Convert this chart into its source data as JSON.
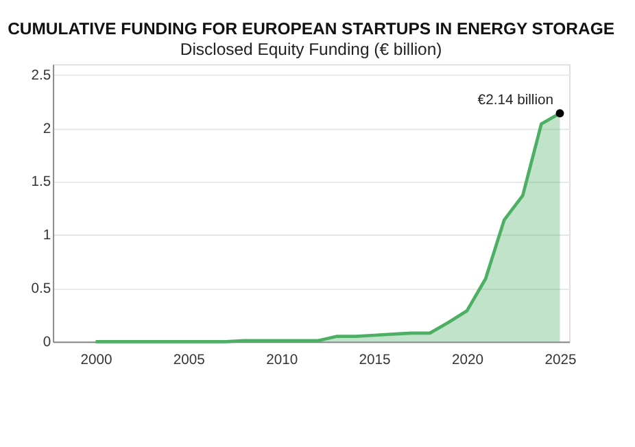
{
  "chart_data": {
    "type": "area",
    "title": "CUMULATIVE FUNDING FOR EUROPEAN STARTUPS IN ENERGY STORAGE",
    "subtitle": "Disclosed Equity Funding (€ billion)",
    "x": [
      2000,
      2001,
      2002,
      2003,
      2004,
      2005,
      2006,
      2007,
      2008,
      2009,
      2010,
      2011,
      2012,
      2013,
      2014,
      2015,
      2016,
      2017,
      2018,
      2019,
      2020,
      2021,
      2022,
      2023,
      2024,
      2025
    ],
    "series": [
      {
        "color": "#4caf63",
        "values": [
          0,
          0,
          0,
          0,
          0,
          0,
          0,
          0,
          0.01,
          0.01,
          0.01,
          0.01,
          0.01,
          0.05,
          0.05,
          0.06,
          0.07,
          0.08,
          0.08,
          0.18,
          0.29,
          0.59,
          1.14,
          1.37,
          2.04,
          2.14
        ]
      }
    ],
    "xlim": [
      1997.7,
      2025.5
    ],
    "xticks": [
      2000,
      2005,
      2010,
      2015,
      2020,
      2025
    ],
    "ylim": [
      0,
      2.6
    ],
    "yticks": [
      0,
      0.5,
      1,
      1.5,
      2,
      2.5
    ],
    "grid": "y",
    "annotations": [
      {
        "text": "€2.14 billion",
        "x": 2025,
        "y": 2.14
      }
    ]
  }
}
